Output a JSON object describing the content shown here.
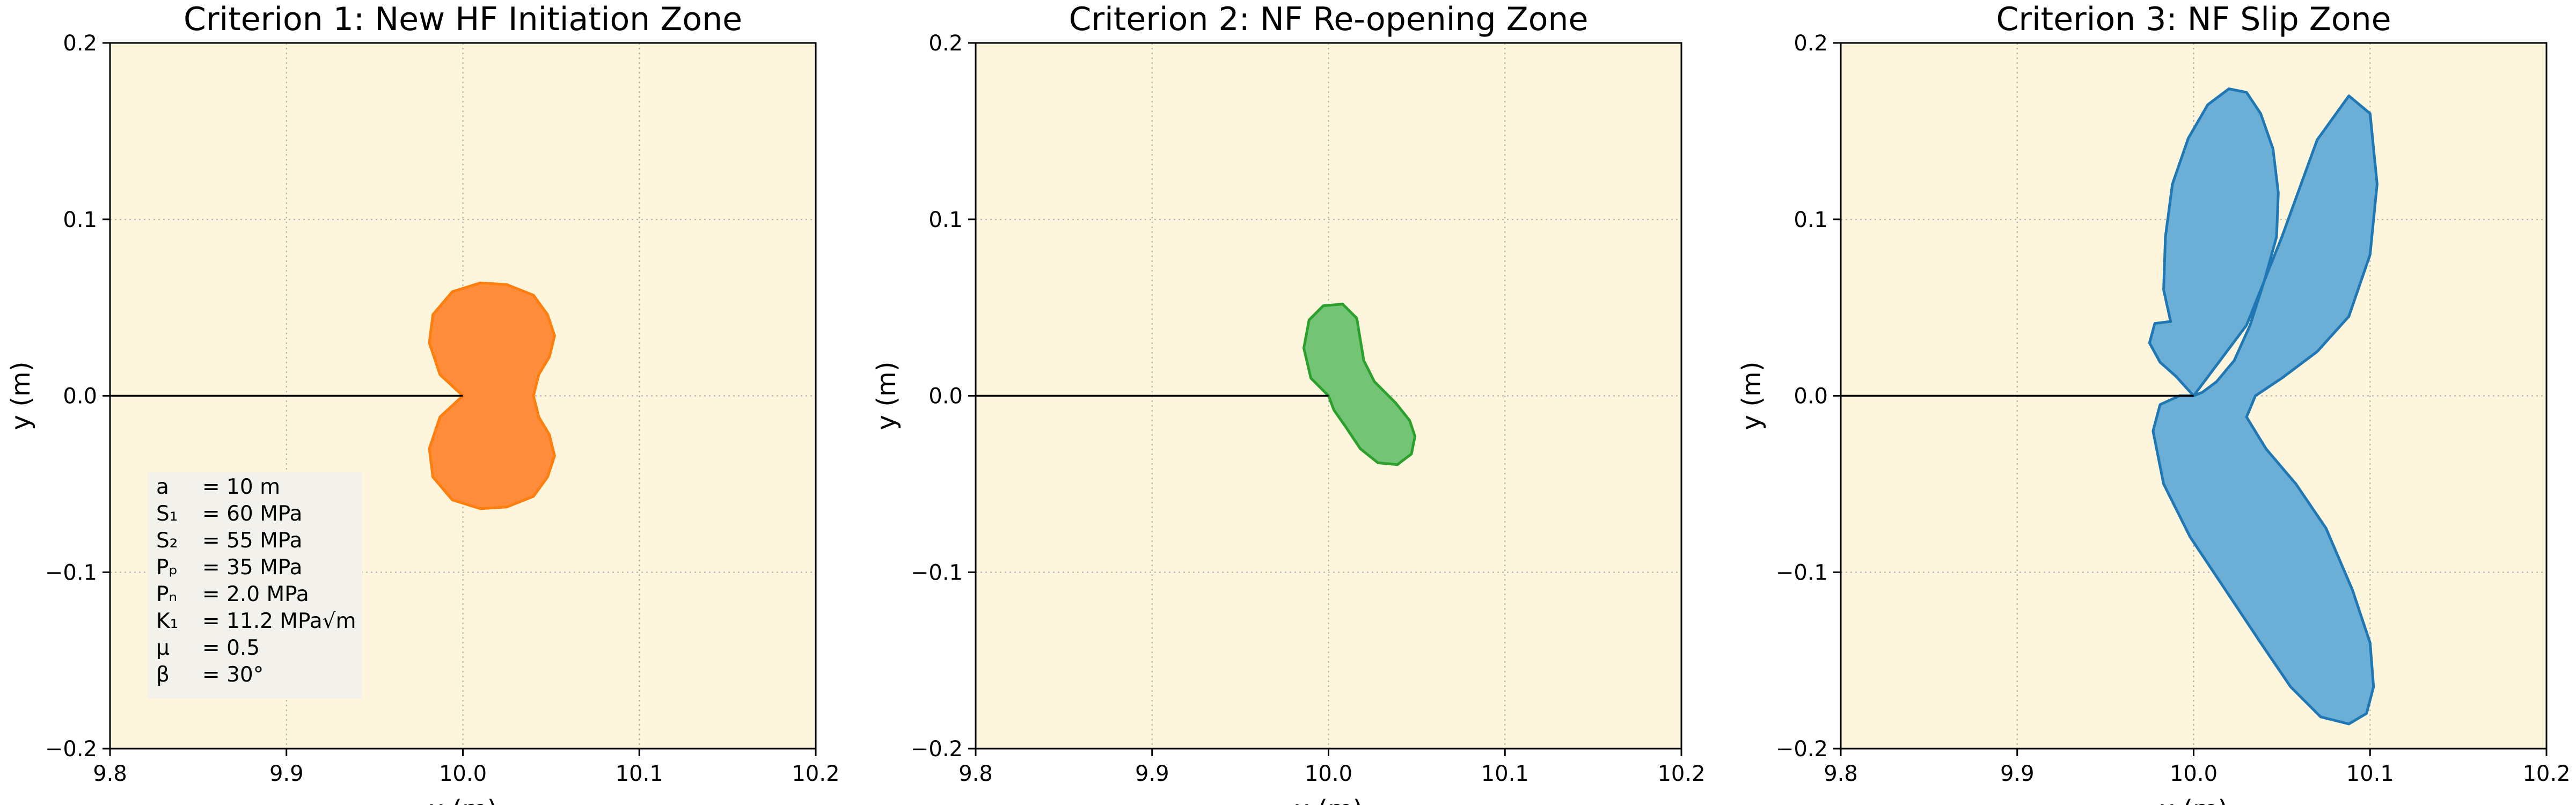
{
  "chart_data": [
    {
      "type": "area",
      "title": "Criterion 1: New HF Initiation Zone",
      "xlabel": "x (m)",
      "ylabel": "y (m)",
      "xlim": [
        9.8,
        10.2
      ],
      "ylim": [
        -0.2,
        0.2
      ],
      "xticks": [
        "9.8",
        "9.9",
        "10.0",
        "10.1",
        "10.2"
      ],
      "yticks": [
        "0.2",
        "0.1",
        "0.0",
        "−0.1",
        "−0.2"
      ],
      "grid": true,
      "background_color": "#fdf5dc",
      "fill_color": "#ff8c3a",
      "edge_color": "#ff7f0e",
      "crack_line": {
        "x": [
          9.8,
          10.0
        ],
        "y": [
          0.0,
          0.0
        ]
      },
      "zone_boundary": {
        "x": [
          10.0,
          9.987,
          9.981,
          9.983,
          9.994,
          10.01,
          10.025,
          10.04,
          10.048,
          10.052,
          10.049,
          10.043,
          10.04,
          10.043,
          10.049,
          10.052,
          10.048,
          10.04,
          10.025,
          10.01,
          9.994,
          9.983,
          9.981,
          9.987,
          10.0
        ],
        "y": [
          0.0,
          0.012,
          0.03,
          0.046,
          0.059,
          0.064,
          0.063,
          0.057,
          0.046,
          0.034,
          0.022,
          0.012,
          0.0,
          -0.012,
          -0.022,
          -0.034,
          -0.046,
          -0.057,
          -0.063,
          -0.064,
          -0.059,
          -0.046,
          -0.03,
          -0.012,
          0.0
        ]
      },
      "legend_box": {
        "placement": "lower-left",
        "lines": [
          {
            "label": "a",
            "value": "= 10 m"
          },
          {
            "label": "S₁",
            "value": "= 60 MPa"
          },
          {
            "label": "S₂",
            "value": "= 55 MPa"
          },
          {
            "label": "Pₚ",
            "value": "= 35 MPa"
          },
          {
            "label": "Pₙ",
            "value": "= 2.0 MPa"
          },
          {
            "label": "K₁",
            "value": "= 11.2 MPa√m"
          },
          {
            "label": "μ",
            "value": "= 0.5"
          },
          {
            "label": "β",
            "value": "= 30°"
          }
        ]
      }
    },
    {
      "type": "area",
      "title": "Criterion 2: NF Re-opening Zone",
      "xlabel": "x (m)",
      "ylabel": "y (m)",
      "xlim": [
        9.8,
        10.2
      ],
      "ylim": [
        -0.2,
        0.2
      ],
      "xticks": [
        "9.8",
        "9.9",
        "10.0",
        "10.1",
        "10.2"
      ],
      "yticks": [
        "0.2",
        "0.1",
        "0.0",
        "−0.1",
        "−0.2"
      ],
      "grid": true,
      "background_color": "#fdf5dc",
      "fill_color": "#74c476",
      "edge_color": "#2ca02c",
      "crack_line": {
        "x": [
          9.8,
          10.0
        ],
        "y": [
          0.0,
          0.0
        ]
      },
      "zone_boundary": {
        "x": [
          10.0,
          9.99,
          9.986,
          9.989,
          9.997,
          10.008,
          10.016,
          10.02,
          10.026,
          10.038,
          10.046,
          10.049,
          10.047,
          10.039,
          10.028,
          10.018,
          10.01,
          10.003,
          10.0
        ],
        "y": [
          0.0,
          0.01,
          0.027,
          0.043,
          0.051,
          0.052,
          0.044,
          0.02,
          0.008,
          -0.004,
          -0.014,
          -0.023,
          -0.033,
          -0.039,
          -0.038,
          -0.03,
          -0.018,
          -0.008,
          0.0
        ]
      }
    },
    {
      "type": "area",
      "title": "Criterion 3: NF Slip Zone",
      "xlabel": "x (m)",
      "ylabel": "y (m)",
      "xlim": [
        9.8,
        10.2
      ],
      "ylim": [
        -0.2,
        0.2
      ],
      "xticks": [
        "9.8",
        "9.9",
        "10.0",
        "10.1",
        "10.2"
      ],
      "yticks": [
        "0.2",
        "0.1",
        "0.0",
        "−0.1",
        "−0.2"
      ],
      "grid": true,
      "background_color": "#fdf5dc",
      "fill_color": "#6baed6",
      "edge_color": "#1f77b4",
      "crack_line": {
        "x": [
          9.8,
          10.0
        ],
        "y": [
          0.0,
          0.0
        ]
      },
      "zone_boundary": {
        "x": [
          10.0,
          10.03,
          10.05,
          10.07,
          10.088,
          10.1,
          10.104,
          10.1,
          10.088,
          10.07,
          10.05,
          10.035,
          10.03,
          10.041,
          10.058,
          10.075,
          10.09,
          10.1,
          10.102,
          10.098,
          10.088,
          10.072,
          10.055,
          10.038,
          10.018,
          9.998,
          9.983,
          9.977,
          9.981,
          9.992,
          10.0,
          9.99,
          9.981,
          9.975,
          9.978,
          9.986,
          9.987,
          9.983,
          9.984,
          9.988,
          9.997,
          10.008,
          10.02,
          10.03,
          10.038,
          10.045,
          10.048,
          10.047,
          10.04,
          10.032,
          10.023,
          10.013,
          10.005,
          10.0
        ],
        "y": [
          0.0,
          0.04,
          0.09,
          0.145,
          0.17,
          0.16,
          0.12,
          0.08,
          0.045,
          0.025,
          0.01,
          0.0,
          -0.012,
          -0.03,
          -0.05,
          -0.075,
          -0.11,
          -0.14,
          -0.165,
          -0.18,
          -0.186,
          -0.182,
          -0.165,
          -0.14,
          -0.11,
          -0.08,
          -0.05,
          -0.02,
          -0.005,
          0.0,
          0.0,
          0.011,
          0.019,
          0.03,
          0.041,
          0.042,
          0.042,
          0.06,
          0.09,
          0.12,
          0.146,
          0.165,
          0.174,
          0.172,
          0.16,
          0.14,
          0.115,
          0.09,
          0.065,
          0.04,
          0.02,
          0.008,
          0.002,
          0.0
        ]
      }
    }
  ]
}
